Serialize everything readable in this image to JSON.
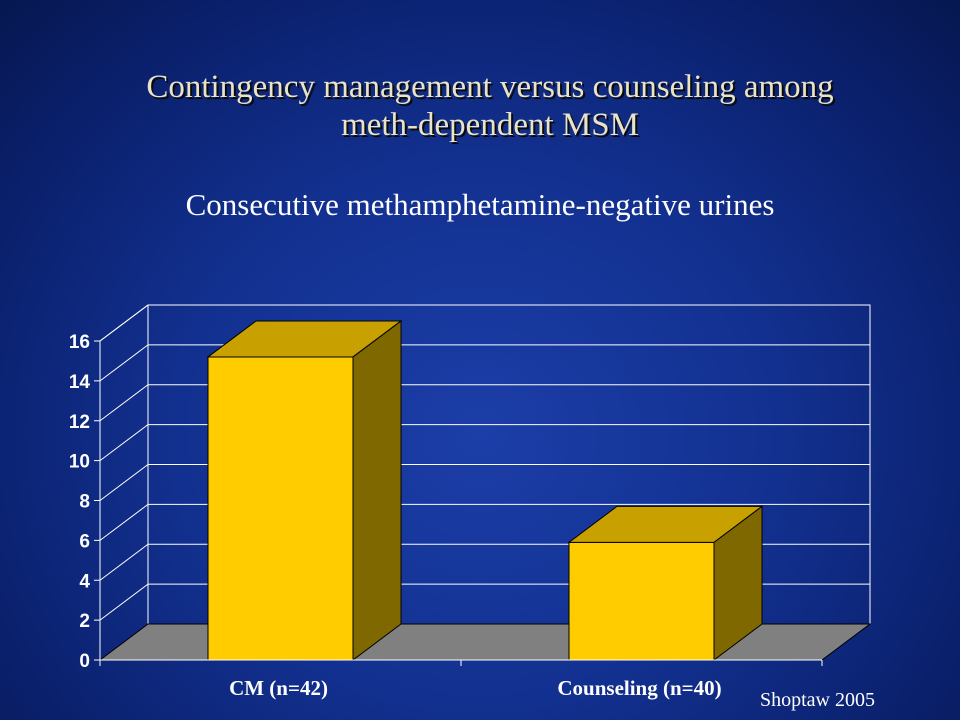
{
  "slide": {
    "title_line1": "Contingency management versus counseling among",
    "title_line2": "meth-dependent MSM",
    "subtitle": "Consecutive methamphetamine-negative urines",
    "citation": "Shoptaw 2005"
  },
  "colors": {
    "background": "#12308f",
    "bar_front": "#ffcc00",
    "bar_top": "#c8a000",
    "bar_side": "#7f6800",
    "floor": "#808080",
    "title_text": "#e9e3c8"
  },
  "chart_data": {
    "type": "bar",
    "style": "3d",
    "categories": [
      "CM (n=42)",
      "Counseling (n=40)"
    ],
    "values": [
      15.2,
      5.9
    ],
    "ylim": [
      0,
      16
    ],
    "yticks": [
      "0",
      "2",
      "4",
      "6",
      "8",
      "10",
      "12",
      "14",
      "16"
    ],
    "title": "",
    "xlabel": "",
    "ylabel": "",
    "grid": true,
    "legend": "none"
  }
}
